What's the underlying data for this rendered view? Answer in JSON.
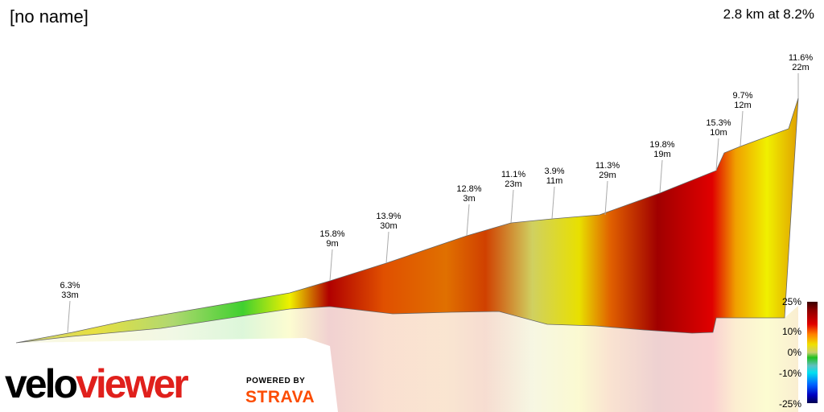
{
  "header": {
    "title": "[no name]",
    "summary": "2.8 km at 8.2%"
  },
  "labels": [
    {
      "grade": "6.3%",
      "length": "33m"
    },
    {
      "grade": "15.8%",
      "length": "9m"
    },
    {
      "grade": "13.9%",
      "length": "30m"
    },
    {
      "grade": "12.8%",
      "length": "3m"
    },
    {
      "grade": "11.1%",
      "length": "23m"
    },
    {
      "grade": "3.9%",
      "length": "11m"
    },
    {
      "grade": "11.3%",
      "length": "29m"
    },
    {
      "grade": "19.8%",
      "length": "19m"
    },
    {
      "grade": "15.3%",
      "length": "10m"
    },
    {
      "grade": "9.7%",
      "length": "12m"
    },
    {
      "grade": "11.6%",
      "length": "22m"
    }
  ],
  "legend": {
    "ticks": [
      "25%",
      "10%",
      "0%",
      "-10%",
      "-25%"
    ]
  },
  "branding": {
    "logo_velo": "velo",
    "logo_viewer": "viewer",
    "powered_by": "POWERED BY",
    "strava": "STRAVA"
  },
  "colors": {
    "logo_red": "#e0201c",
    "strava_orange": "#fc4c02"
  }
}
